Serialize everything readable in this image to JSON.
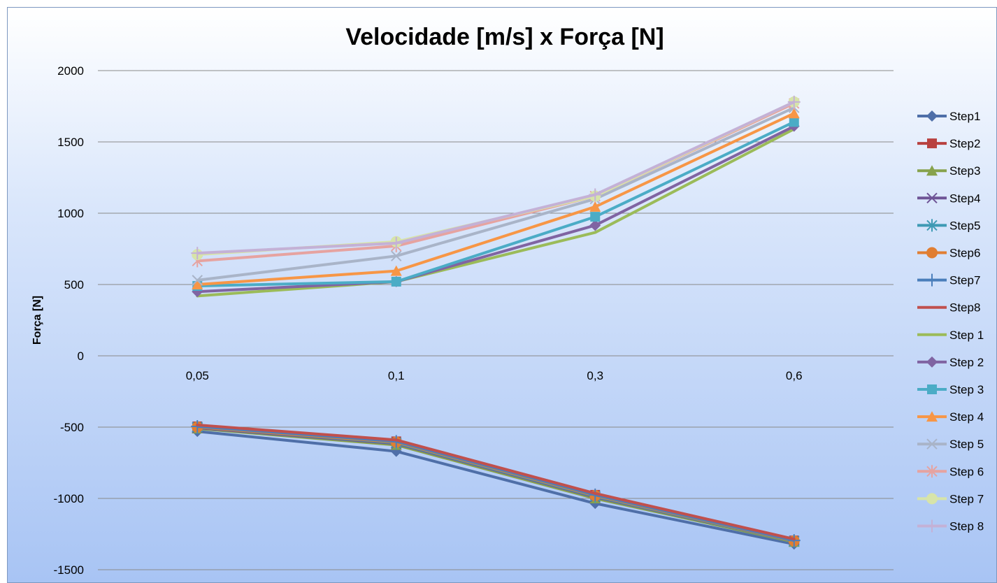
{
  "chart_data": {
    "type": "line",
    "title": "Velocidade [m/s] x Força [N]",
    "xlabel": "",
    "ylabel": "Força [N]",
    "categories": [
      "0,05",
      "0,1",
      "0,3",
      "0,6"
    ],
    "ylim": [
      -1500,
      2000
    ],
    "yticks": [
      "2000",
      "1500",
      "1000",
      "500",
      "0",
      "-500",
      "-1000",
      "-1500"
    ],
    "grid": true,
    "legend_position": "right",
    "series": [
      {
        "name": "Step1",
        "color": "#4f6fa8",
        "marker": "diamond",
        "values": [
          -530,
          -670,
          -1035,
          -1320
        ]
      },
      {
        "name": "Step2",
        "color": "#b8413f",
        "marker": "square",
        "values": [
          -495,
          -600,
          -975,
          -1295
        ]
      },
      {
        "name": "Step3",
        "color": "#87a24c",
        "marker": "triangle",
        "values": [
          -510,
          -625,
          -1000,
          -1305
        ]
      },
      {
        "name": "Step4",
        "color": "#6e5496",
        "marker": "x",
        "values": [
          -505,
          -615,
          -990,
          -1300
        ]
      },
      {
        "name": "Step5",
        "color": "#3e9ab4",
        "marker": "star",
        "values": [
          -500,
          -610,
          -985,
          -1300
        ]
      },
      {
        "name": "Step6",
        "color": "#e07e32",
        "marker": "circle",
        "values": [
          -500,
          -605,
          -980,
          -1298
        ]
      },
      {
        "name": "Step7",
        "color": "#4a7ebb",
        "marker": "plus",
        "values": [
          -495,
          -600,
          -975,
          -1295
        ]
      },
      {
        "name": "Step8",
        "color": "#c0504d",
        "marker": "none",
        "values": [
          -485,
          -590,
          -965,
          -1285
        ]
      },
      {
        "name": "Step 1",
        "color": "#9bbb59",
        "marker": "none",
        "values": [
          420,
          520,
          865,
          1590
        ]
      },
      {
        "name": "Step 2",
        "color": "#8064a2",
        "marker": "diamond",
        "values": [
          450,
          520,
          915,
          1610
        ]
      },
      {
        "name": "Step 3",
        "color": "#4bacc6",
        "marker": "square",
        "values": [
          490,
          520,
          975,
          1640
        ]
      },
      {
        "name": "Step 4",
        "color": "#f79646",
        "marker": "triangle",
        "values": [
          500,
          595,
          1045,
          1700
        ]
      },
      {
        "name": "Step 5",
        "color": "#a9b4c8",
        "marker": "x",
        "values": [
          530,
          700,
          1100,
          1740
        ]
      },
      {
        "name": "Step 6",
        "color": "#e6a3a0",
        "marker": "star",
        "values": [
          665,
          770,
          1120,
          1770
        ]
      },
      {
        "name": "Step 7",
        "color": "#d7e4a9",
        "marker": "circle",
        "values": [
          710,
          800,
          1120,
          1780
        ]
      },
      {
        "name": "Step 8",
        "color": "#c4b1d6",
        "marker": "plus",
        "values": [
          720,
          790,
          1130,
          1780
        ]
      }
    ]
  }
}
